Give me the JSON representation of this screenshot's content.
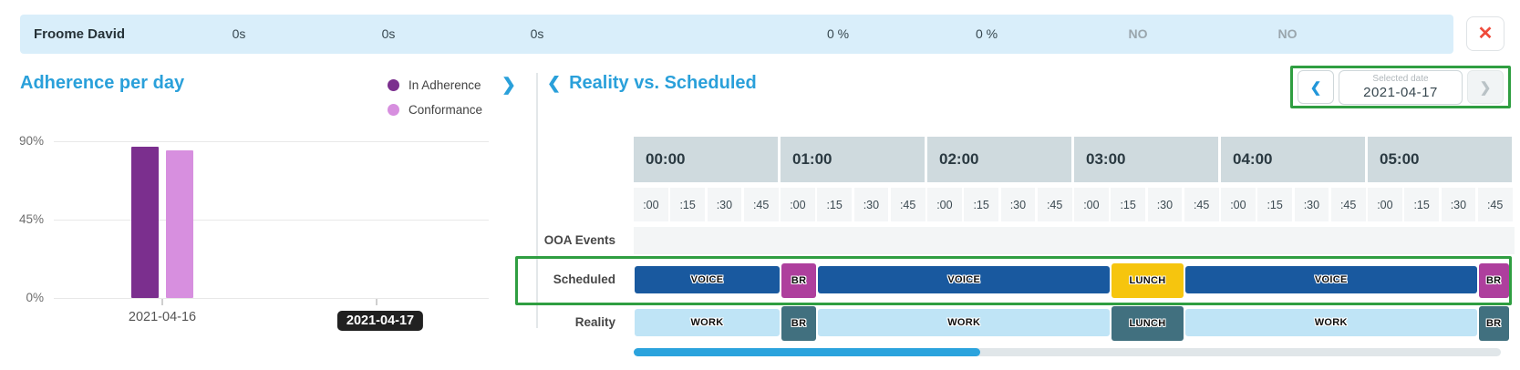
{
  "summary_bar": {
    "agent_name": "Froome David",
    "values": [
      "0s",
      "0s",
      "0s",
      "0 %",
      "0 %",
      "NO",
      "NO"
    ],
    "close_icon": "✕"
  },
  "adherence_panel": {
    "title": "Adherence per day",
    "legend": [
      {
        "label": "In Adherence",
        "color": "#7b2f8e"
      },
      {
        "label": "Conformance",
        "color": "#d78fdf"
      }
    ],
    "expand_icon": "❯"
  },
  "chart_data": {
    "type": "bar",
    "title": "Adherence per day",
    "categories": [
      "2021-04-16",
      "2021-04-17"
    ],
    "series": [
      {
        "name": "In Adherence",
        "values": [
          87,
          null
        ]
      },
      {
        "name": "Conformance",
        "values": [
          85,
          null
        ]
      }
    ],
    "ylim": [
      0,
      90
    ],
    "ytick_labels": [
      "90%",
      "45%",
      "0%"
    ],
    "xlabel": "",
    "ylabel": "",
    "grid": "horizontal",
    "legend_position": "top-right",
    "selected_category": "2021-04-17"
  },
  "schedule_panel": {
    "back_icon": "❮",
    "title": "Reality vs. Scheduled",
    "date_nav": {
      "prev_icon": "❮",
      "label": "Selected date",
      "value": "2021-04-17",
      "next_icon": "❯"
    },
    "timeline": {
      "hours": [
        "00:00",
        "01:00",
        "02:00",
        "03:00",
        "04:00",
        "05:00"
      ],
      "quarters": [
        ":00",
        ":15",
        ":30",
        ":45"
      ],
      "rows": [
        {
          "label": "OOA Events",
          "blocks": []
        },
        {
          "label": "Scheduled",
          "highlighted": true,
          "blocks": [
            {
              "label": "VOICE",
              "color_key": "voice",
              "tall": false,
              "start_min": 0,
              "end_min": 60
            },
            {
              "label": "BR",
              "color_key": "br",
              "tall": true,
              "start_min": 60,
              "end_min": 75
            },
            {
              "label": "VOICE",
              "color_key": "voice",
              "tall": false,
              "start_min": 75,
              "end_min": 195
            },
            {
              "label": "LUNCH",
              "color_key": "lunch",
              "tall": true,
              "start_min": 195,
              "end_min": 225
            },
            {
              "label": "VOICE",
              "color_key": "voice",
              "tall": false,
              "start_min": 225,
              "end_min": 345
            },
            {
              "label": "BR",
              "color_key": "br",
              "tall": true,
              "start_min": 345,
              "end_min": 358
            }
          ]
        },
        {
          "label": "Reality",
          "blocks": [
            {
              "label": "WORK",
              "color_key": "work",
              "tall": false,
              "start_min": 0,
              "end_min": 60
            },
            {
              "label": "BR",
              "color_key": "reality_exception",
              "tall": true,
              "start_min": 60,
              "end_min": 75
            },
            {
              "label": "WORK",
              "color_key": "work",
              "tall": false,
              "start_min": 75,
              "end_min": 195
            },
            {
              "label": "LUNCH",
              "color_key": "reality_exception",
              "tall": true,
              "start_min": 195,
              "end_min": 225
            },
            {
              "label": "WORK",
              "color_key": "work",
              "tall": false,
              "start_min": 225,
              "end_min": 345
            },
            {
              "label": "BR",
              "color_key": "reality_exception",
              "tall": true,
              "start_min": 345,
              "end_min": 358
            }
          ]
        }
      ]
    }
  },
  "colors": {
    "voice": "#19599f",
    "br": "#ae3f9d",
    "lunch": "#f6c50e",
    "work": "#bfe4f6",
    "reality_exception": "#41707f",
    "annotation_green": "#2f9e41",
    "accent_blue": "#2aa0da",
    "topbar_bg": "#d9eefa",
    "scrollbar_blue": "#2ba3dd"
  }
}
